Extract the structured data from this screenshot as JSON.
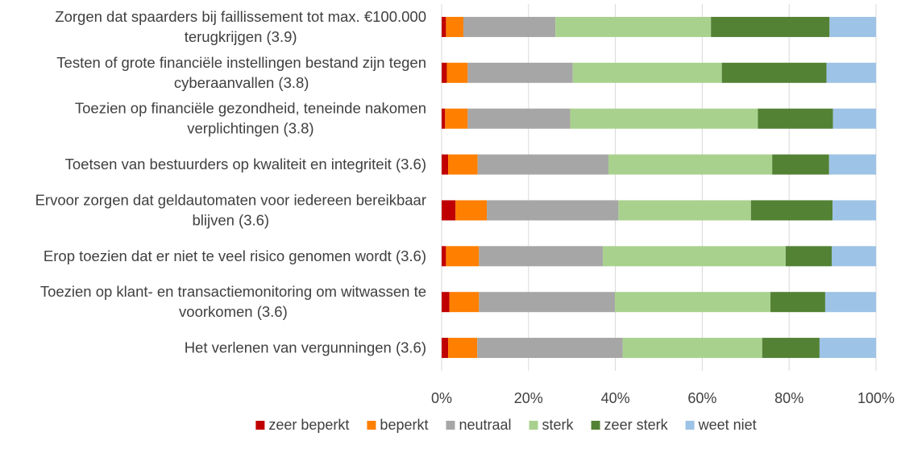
{
  "chart_data": {
    "type": "bar",
    "orientation": "horizontal",
    "stacked": "percent",
    "categories": [
      [
        "Zorgen dat spaarders bij faillissement tot max. €100.000",
        "terugkrijgen (3.9)"
      ],
      [
        "Testen of grote financiële instellingen bestand zijn tegen",
        "cyberaanvallen (3.8)"
      ],
      [
        "Toezien op financiële gezondheid, teneinde nakomen",
        "verplichtingen (3.8)"
      ],
      [
        "Toetsen van bestuurders op kwaliteit en integriteit (3.6)"
      ],
      [
        "Ervoor zorgen dat geldautomaten voor iedereen bereikbaar",
        "blijven (3.6)"
      ],
      [
        "Erop toezien dat er niet te veel risico genomen wordt (3.6)"
      ],
      [
        "Toezien op klant- en transactiemonitoring om witwassen te",
        "voorkomen (3.6)"
      ],
      [
        "Het verlenen van vergunningen (3.6)"
      ]
    ],
    "series": [
      {
        "name": "zeer beperkt",
        "color": "#C00000",
        "values": [
          1.0,
          1.2,
          0.8,
          1.5,
          3.2,
          1.0,
          1.8,
          1.5
        ]
      },
      {
        "name": "beperkt",
        "color": "#FF7F00",
        "values": [
          4.0,
          4.8,
          5.2,
          6.8,
          7.2,
          7.6,
          6.8,
          6.7
        ]
      },
      {
        "name": "neutraal",
        "color": "#A6A6A6",
        "values": [
          21.2,
          24.2,
          23.6,
          30.1,
          30.3,
          28.5,
          31.3,
          33.5
        ]
      },
      {
        "name": "sterk",
        "color": "#A9D18E",
        "values": [
          35.8,
          34.3,
          43.2,
          37.7,
          30.5,
          42.1,
          35.8,
          32.1
        ]
      },
      {
        "name": "zeer sterk",
        "color": "#548235",
        "values": [
          27.3,
          24.1,
          17.3,
          13.1,
          18.8,
          10.6,
          12.6,
          13.2
        ]
      },
      {
        "name": "weet niet",
        "color": "#9DC3E6",
        "values": [
          10.7,
          11.4,
          9.9,
          10.8,
          10.0,
          10.2,
          11.7,
          13.0
        ]
      }
    ],
    "xlim": [
      0,
      100
    ],
    "x_ticks": [
      "0%",
      "20%",
      "40%",
      "60%",
      "80%",
      "100%"
    ],
    "grid": "vertical",
    "legend": "bottom"
  }
}
